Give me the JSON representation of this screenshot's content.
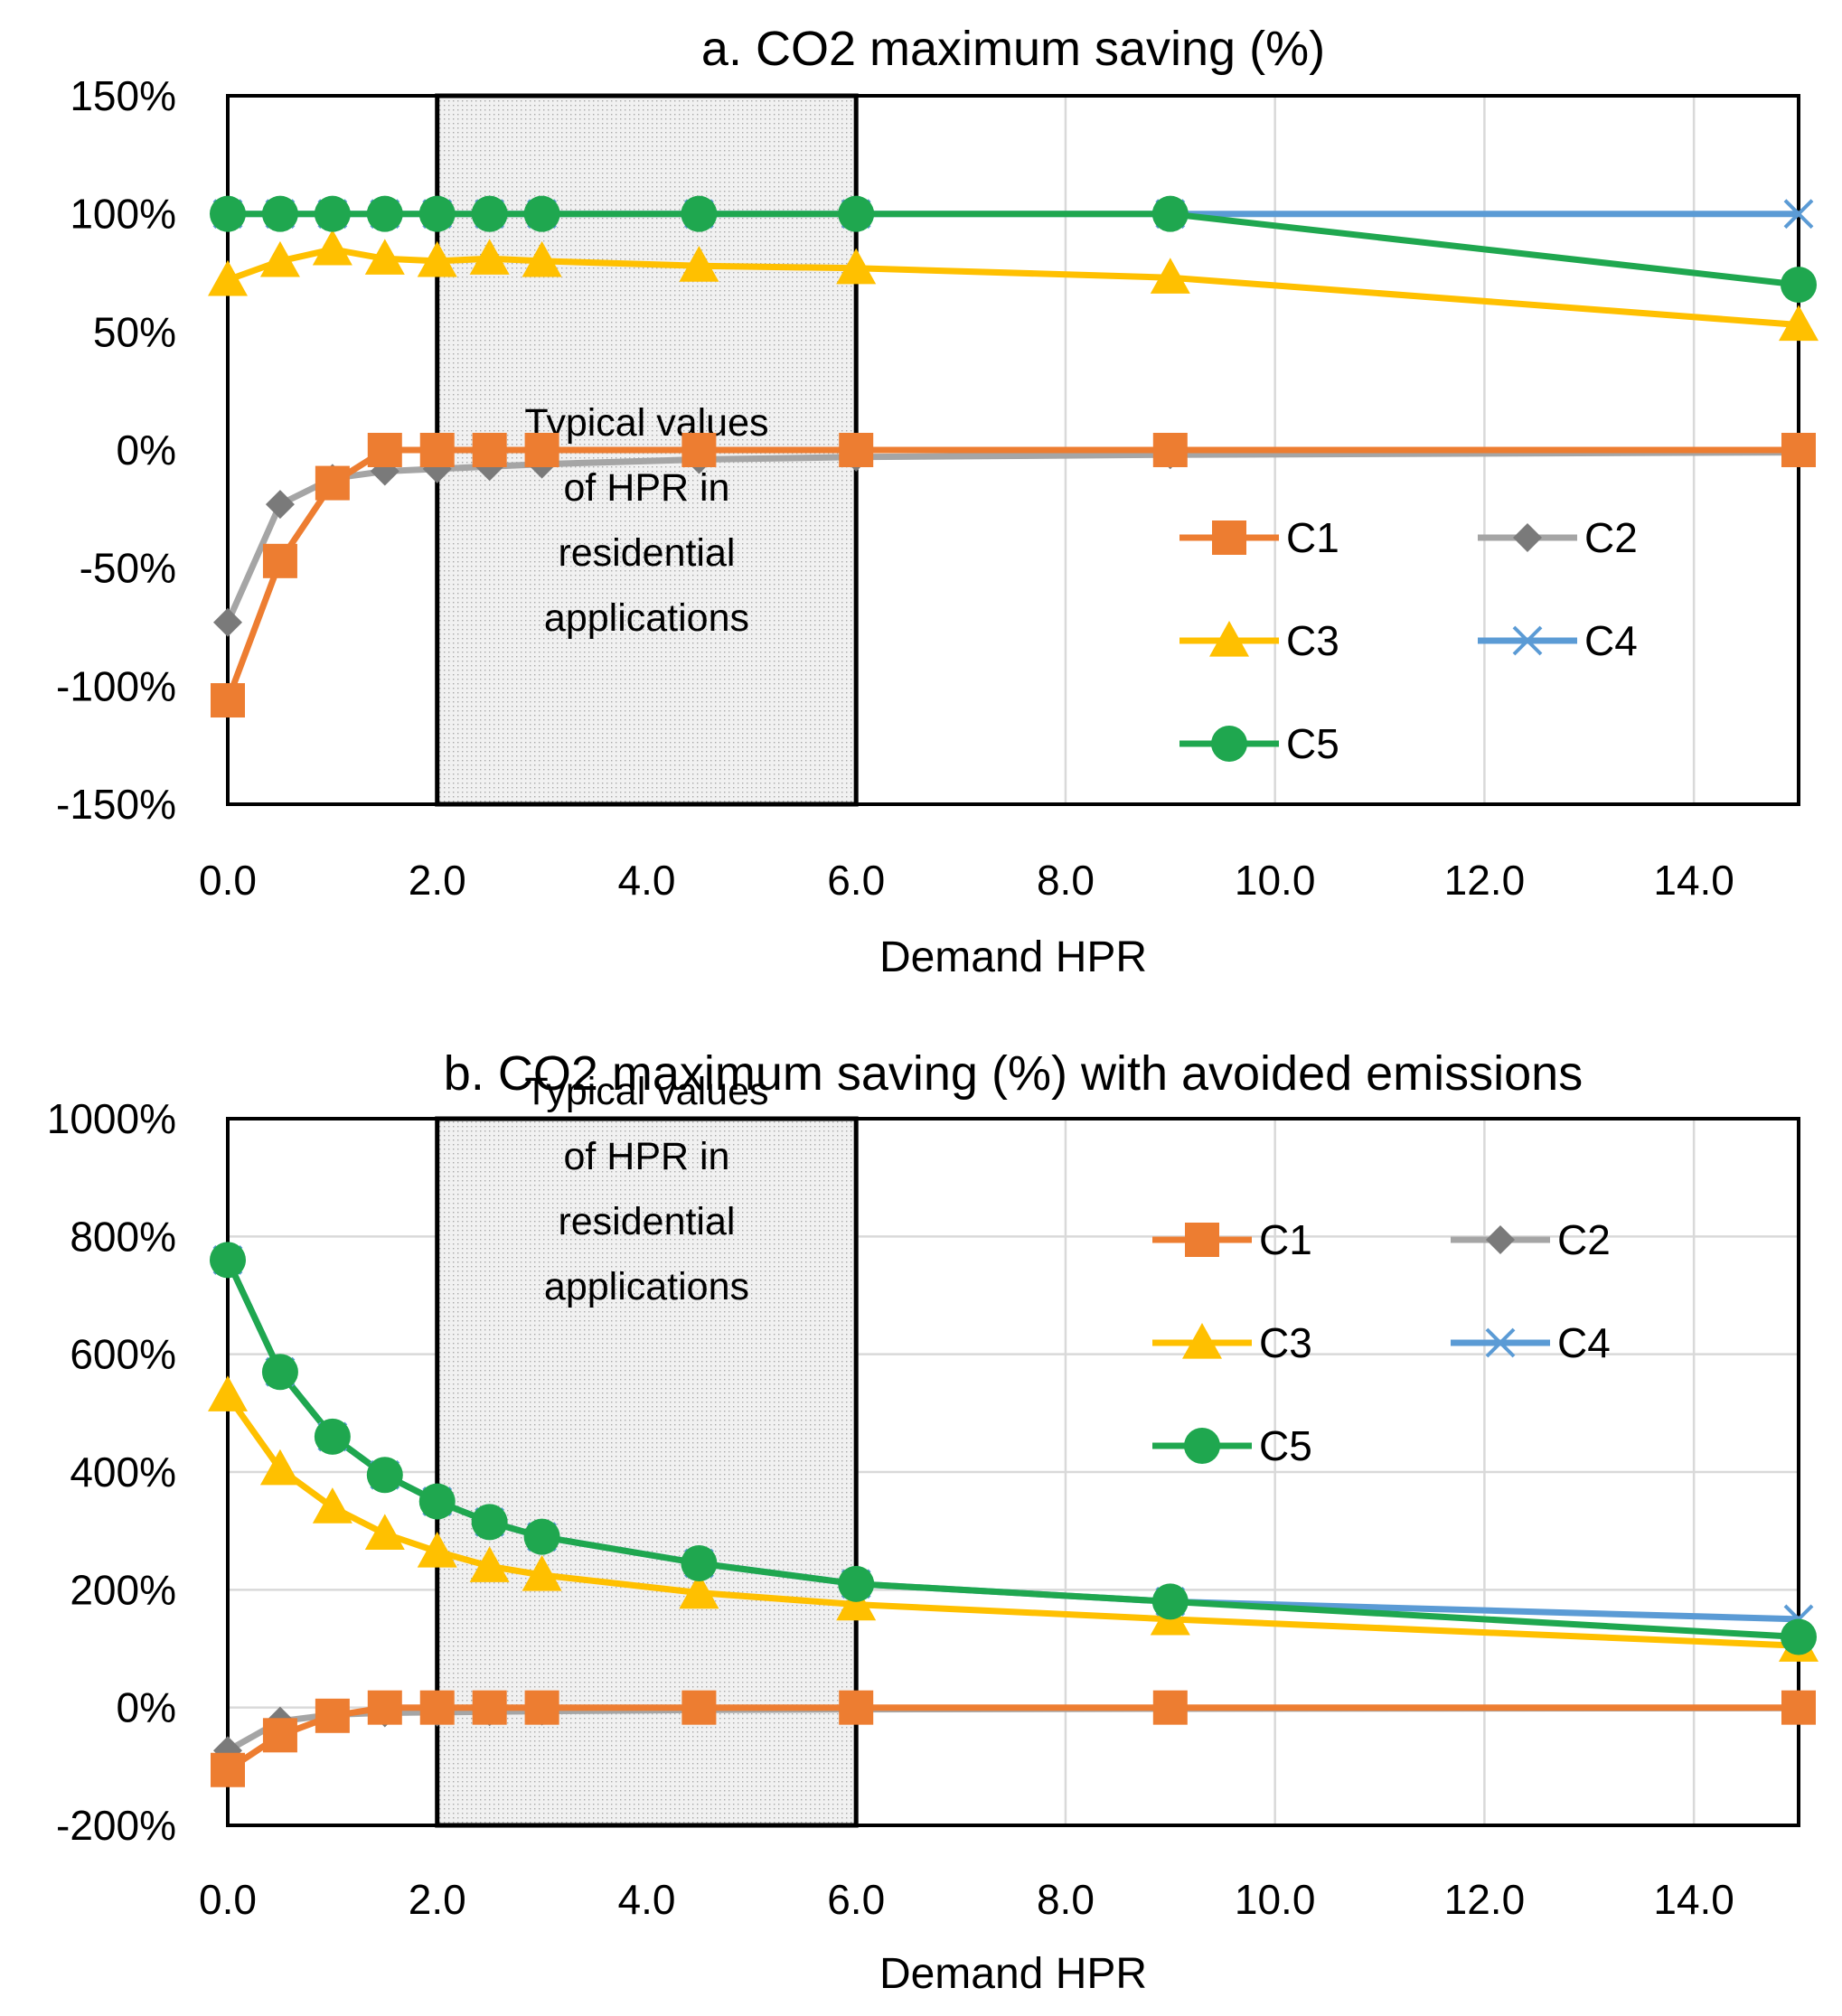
{
  "chart_data": [
    {
      "type": "line",
      "title": "a. CO2 maximum saving (%)",
      "xlabel": "Demand HPR",
      "ylabel": "",
      "xlim": [
        0,
        15
      ],
      "ylim": [
        -150,
        150
      ],
      "xticks": [
        0,
        2,
        4,
        6,
        8,
        10,
        12,
        14
      ],
      "xtick_labels": [
        "0.0",
        "2.0",
        "4.0",
        "6.0",
        "8.0",
        "10.0",
        "12.0",
        "14.0"
      ],
      "yticks": [
        -150,
        -100,
        -50,
        0,
        50,
        100,
        150
      ],
      "ytick_labels": [
        "-150%",
        "-100%",
        "-50%",
        "0%",
        "50%",
        "100%",
        "150%"
      ],
      "grid": "vertical",
      "band": {
        "x_start": 2,
        "x_end": 6,
        "label_lines": [
          "Typical values",
          "of HPR in",
          "residential",
          "applications"
        ]
      },
      "legend_position": "lower-right",
      "x": [
        0,
        0.5,
        1,
        1.5,
        2,
        2.5,
        3,
        4.5,
        6,
        9,
        15
      ],
      "series": [
        {
          "name": "C1",
          "color": "#ED7D31",
          "marker": "square",
          "values": [
            -106,
            -47,
            -14,
            0,
            0,
            0,
            0,
            0,
            0,
            0,
            0
          ]
        },
        {
          "name": "C2",
          "color": "#A5A5A5",
          "marker": "diamond",
          "values": [
            -73,
            -23,
            -12,
            -9,
            -8,
            -7,
            -6,
            -4,
            -3,
            -2,
            -1
          ]
        },
        {
          "name": "C3",
          "color": "#FFC000",
          "marker": "triangle",
          "values": [
            72,
            80,
            85,
            81,
            80,
            81,
            80,
            78,
            77,
            73,
            53
          ]
        },
        {
          "name": "C4",
          "color": "#5B9BD5",
          "marker": "x",
          "values": [
            100,
            100,
            100,
            100,
            100,
            100,
            100,
            100,
            100,
            100,
            100
          ]
        },
        {
          "name": "C5",
          "color": "#1FA74F",
          "marker": "circle",
          "values": [
            100,
            100,
            100,
            100,
            100,
            100,
            100,
            100,
            100,
            100,
            70
          ]
        }
      ]
    },
    {
      "type": "line",
      "title": "b. CO2 maximum saving (%) with avoided emissions",
      "xlabel": "Demand HPR",
      "ylabel": "",
      "xlim": [
        0,
        15
      ],
      "ylim": [
        -200,
        1000
      ],
      "xticks": [
        0,
        2,
        4,
        6,
        8,
        10,
        12,
        14
      ],
      "xtick_labels": [
        "0.0",
        "2.0",
        "4.0",
        "6.0",
        "8.0",
        "10.0",
        "12.0",
        "14.0"
      ],
      "yticks": [
        -200,
        0,
        200,
        400,
        600,
        800,
        1000
      ],
      "ytick_labels": [
        "-200%",
        "0%",
        "200%",
        "400%",
        "600%",
        "800%",
        "1000%"
      ],
      "grid": "both",
      "band": {
        "x_start": 2,
        "x_end": 6,
        "label_lines": [
          "Typical values",
          "of HPR in",
          "residential",
          "applications"
        ]
      },
      "legend_position": "top-right",
      "x": [
        0,
        0.5,
        1,
        1.5,
        2,
        2.5,
        3,
        4.5,
        6,
        9,
        15
      ],
      "series": [
        {
          "name": "C1",
          "color": "#ED7D31",
          "marker": "square",
          "values": [
            -106,
            -47,
            -14,
            0,
            0,
            0,
            0,
            0,
            0,
            0,
            0
          ]
        },
        {
          "name": "C2",
          "color": "#A5A5A5",
          "marker": "diamond",
          "values": [
            -73,
            -23,
            -12,
            -9,
            -8,
            -7,
            -6,
            -4,
            -3,
            -2,
            -1
          ]
        },
        {
          "name": "C3",
          "color": "#FFC000",
          "marker": "triangle",
          "values": [
            530,
            405,
            340,
            295,
            265,
            240,
            225,
            195,
            175,
            150,
            105
          ]
        },
        {
          "name": "C4",
          "color": "#5B9BD5",
          "marker": "x",
          "values": [
            760,
            570,
            460,
            395,
            350,
            315,
            290,
            245,
            210,
            180,
            150
          ]
        },
        {
          "name": "C5",
          "color": "#1FA74F",
          "marker": "circle",
          "values": [
            760,
            570,
            460,
            395,
            350,
            315,
            290,
            245,
            210,
            180,
            120
          ]
        }
      ]
    }
  ]
}
